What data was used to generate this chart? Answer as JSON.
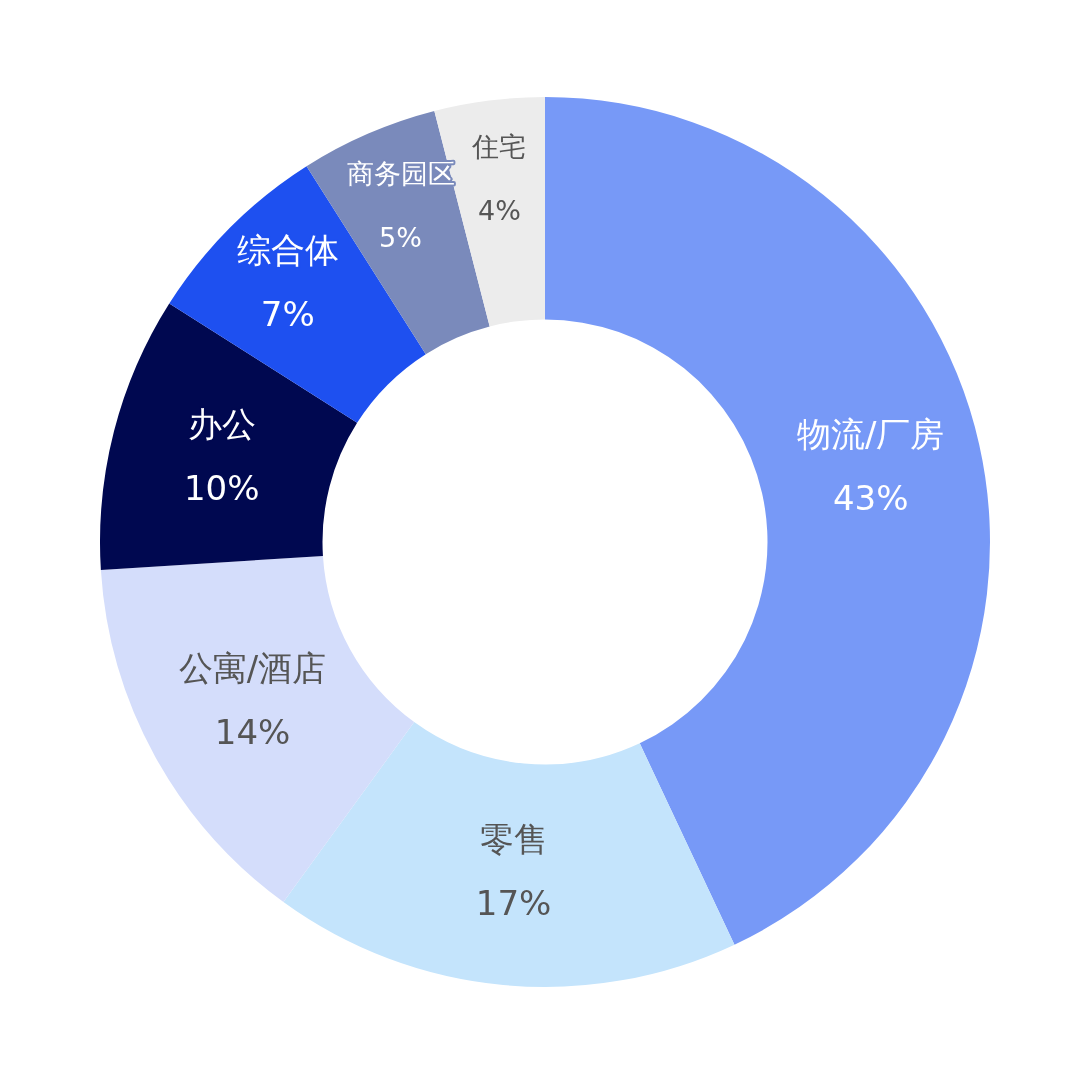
{
  "chart_data": {
    "type": "donut",
    "categories": [
      "物流/厂房",
      "零售",
      "公寓/酒店",
      "办公",
      "综合体",
      "商务园区",
      "住宅"
    ],
    "values": [
      43,
      17,
      14,
      10,
      7,
      5,
      4
    ],
    "value_labels": [
      "43%",
      "17%",
      "14%",
      "10%",
      "7%",
      "5%",
      "4%"
    ],
    "colors": [
      "#7799f7",
      "#c4e4fc",
      "#d4ddfb",
      "#000850",
      "#1e50f0",
      "#7a8abb",
      "#ececec"
    ],
    "legend": false
  }
}
